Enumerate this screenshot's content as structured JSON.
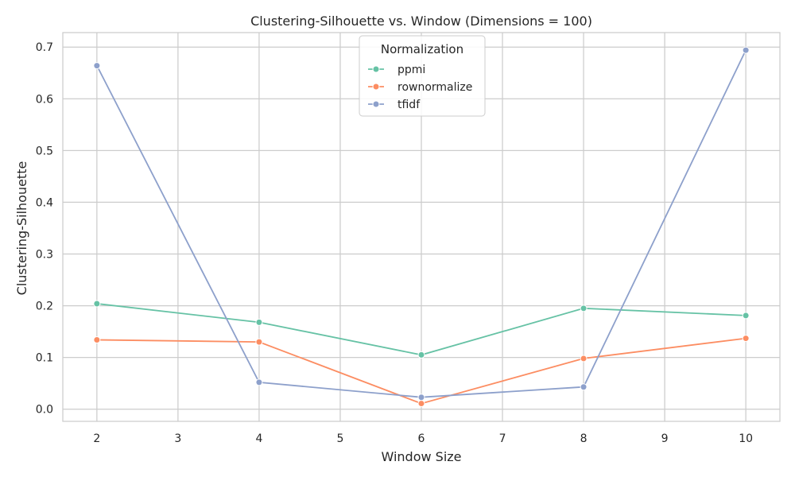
{
  "chart_data": {
    "type": "line",
    "title": "Clustering-Silhouette vs. Window (Dimensions = 100)",
    "xlabel": "Window Size",
    "ylabel": "Clustering-Silhouette",
    "x": [
      2,
      4,
      6,
      8,
      10
    ],
    "xticks": [
      "2",
      "3",
      "4",
      "5",
      "6",
      "7",
      "8",
      "9",
      "10"
    ],
    "yticks": [
      "0.0",
      "0.1",
      "0.2",
      "0.3",
      "0.4",
      "0.5",
      "0.6",
      "0.7"
    ],
    "xlim": [
      1.58,
      10.42
    ],
    "ylim": [
      -0.0235,
      0.728
    ],
    "grid": true,
    "legend": {
      "title": "Normalization",
      "placement": "top-center"
    },
    "series": [
      {
        "name": "ppmi",
        "color": "#66c2a5",
        "values": [
          0.204,
          0.168,
          0.105,
          0.195,
          0.181
        ]
      },
      {
        "name": "rownormalize",
        "color": "#fc8d62",
        "values": [
          0.134,
          0.13,
          0.011,
          0.098,
          0.137
        ]
      },
      {
        "name": "tfidf",
        "color": "#8da0cb",
        "values": [
          0.664,
          0.052,
          0.023,
          0.043,
          0.694
        ]
      }
    ]
  }
}
